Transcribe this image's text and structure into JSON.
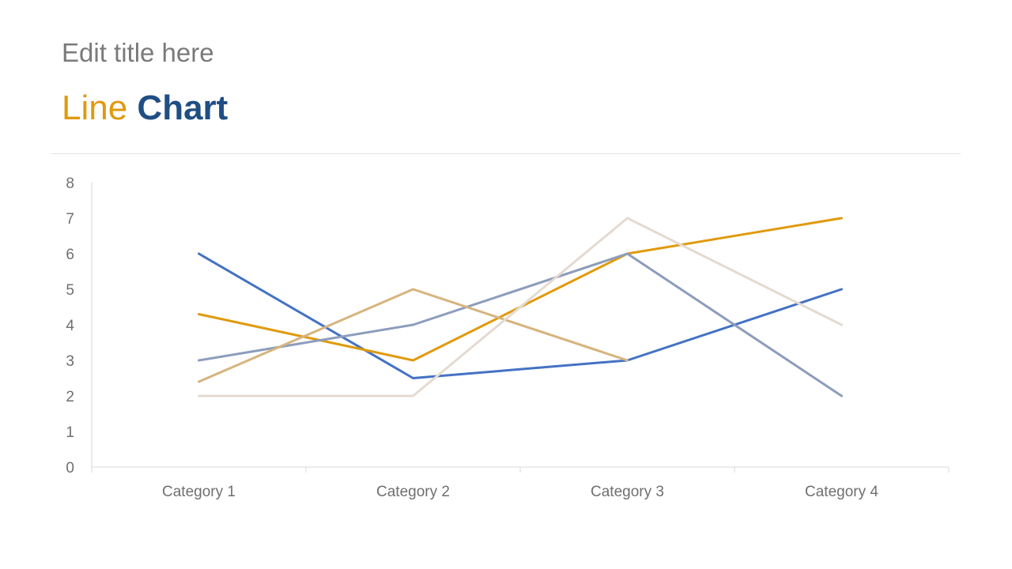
{
  "slide": {
    "title": "Edit title here",
    "heading_word1": "Line",
    "heading_word2": "Chart",
    "heading_color1": "#E09A0E",
    "heading_color2": "#1F4E84"
  },
  "chart_data": {
    "type": "line",
    "title": "",
    "xlabel": "",
    "ylabel": "",
    "ylim": [
      0,
      8
    ],
    "yticks": [
      "0",
      "1",
      "2",
      "3",
      "4",
      "5",
      "6",
      "7",
      "8"
    ],
    "categories": [
      "Category 1",
      "Category 2",
      "Category 3",
      "Category 4"
    ],
    "grid": false,
    "legend": "none",
    "series": [
      {
        "color": "#4472C4",
        "values": [
          6,
          2.5,
          3,
          5
        ]
      },
      {
        "color": "#E09A0E",
        "values": [
          4.3,
          3,
          6,
          7
        ]
      },
      {
        "color": "#8C9DBB",
        "values": [
          3,
          4,
          6,
          2
        ]
      },
      {
        "color": "#D6B47E",
        "values": [
          2.4,
          5,
          3,
          null
        ]
      },
      {
        "color": "#E4DAD1",
        "values": [
          2,
          2,
          7,
          4
        ]
      }
    ]
  }
}
